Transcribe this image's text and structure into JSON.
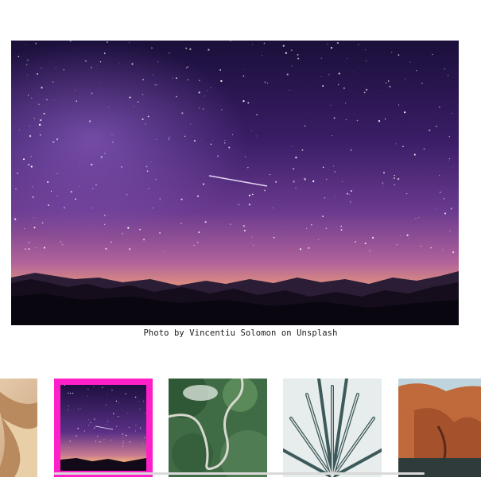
{
  "viewer": {
    "image_icon": "night-sky-milky-way-photo",
    "caption": "Photo by Vincentiu Solomon on Unsplash"
  },
  "thumbnails": [
    {
      "name": "thumbnail-desert-dunes",
      "icon": "desert-dunes-photo",
      "active": false
    },
    {
      "name": "thumbnail-night-sky",
      "icon": "night-sky-milky-way-photo",
      "active": true
    },
    {
      "name": "thumbnail-winding-road",
      "icon": "winding-mountain-road-photo",
      "active": false
    },
    {
      "name": "thumbnail-frosted-plant",
      "icon": "frosted-plant-photo",
      "active": false
    },
    {
      "name": "thumbnail-red-rocks",
      "icon": "red-rock-canyon-photo",
      "active": false
    }
  ],
  "colors": {
    "active_border": "#ff1fc8",
    "scrollbar": "#d9d9d9"
  }
}
